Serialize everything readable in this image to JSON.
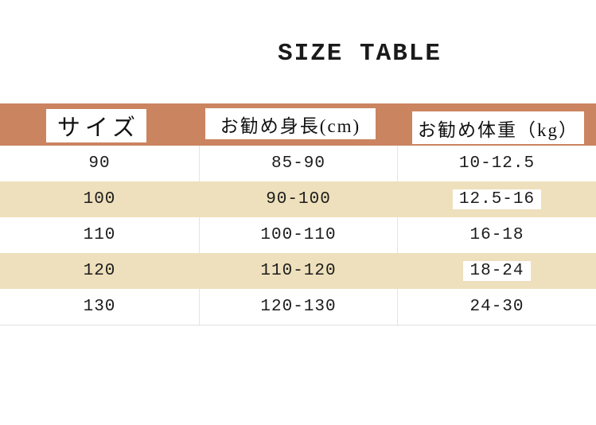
{
  "title": "SIZE TABLE",
  "colors": {
    "header_bg": "#cb8460",
    "row_alt_bg": "#eee0bc",
    "divider": "#e4e4e4",
    "text": "#1c1c1c"
  },
  "table": {
    "columns": [
      {
        "label": "サイズ"
      },
      {
        "label": "お勧め身長(cm)"
      },
      {
        "label": "お勧め体重（kg）"
      }
    ],
    "rows": [
      {
        "size": "90",
        "height": "85-90",
        "weight": "10-12.5",
        "weight_highlight": false
      },
      {
        "size": "100",
        "height": "90-100",
        "weight": "12.5-16",
        "weight_highlight": true
      },
      {
        "size": "110",
        "height": "100-110",
        "weight": "16-18",
        "weight_highlight": false
      },
      {
        "size": "120",
        "height": "110-120",
        "weight": "18-24",
        "weight_highlight": true
      },
      {
        "size": "130",
        "height": "120-130",
        "weight": "24-30",
        "weight_highlight": false
      }
    ]
  },
  "chart_data": {
    "type": "table",
    "title": "SIZE TABLE",
    "columns": [
      "サイズ",
      "お勧め身長(cm)",
      "お勧め体重（kg）"
    ],
    "rows": [
      [
        "90",
        "85-90",
        "10-12.5"
      ],
      [
        "100",
        "90-100",
        "12.5-16"
      ],
      [
        "110",
        "100-110",
        "16-18"
      ],
      [
        "120",
        "110-120",
        "18-24"
      ],
      [
        "130",
        "120-130",
        "24-30"
      ]
    ]
  }
}
